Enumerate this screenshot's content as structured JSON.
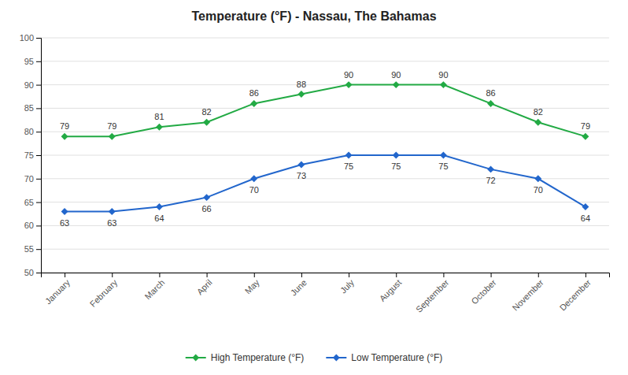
{
  "chart_data": {
    "type": "line",
    "title": "Temperature (°F) - Nassau, The Bahamas",
    "categories": [
      "January",
      "February",
      "March",
      "April",
      "May",
      "June",
      "July",
      "August",
      "September",
      "October",
      "November",
      "December"
    ],
    "series": [
      {
        "name": "High Temperature (°F)",
        "color": "#22aa44",
        "values": [
          79,
          79,
          81,
          82,
          86,
          88,
          90,
          90,
          90,
          86,
          82,
          79
        ]
      },
      {
        "name": "Low Temperature (°F)",
        "color": "#2266cc",
        "values": [
          63,
          63,
          64,
          66,
          70,
          73,
          75,
          75,
          75,
          72,
          70,
          64
        ]
      }
    ],
    "ylim": [
      50,
      100
    ],
    "yticks": [
      50,
      55,
      60,
      65,
      70,
      75,
      80,
      85,
      90,
      95,
      100
    ],
    "grid": true,
    "legend": "bottom",
    "data_labels": true,
    "marker": "diamond"
  }
}
